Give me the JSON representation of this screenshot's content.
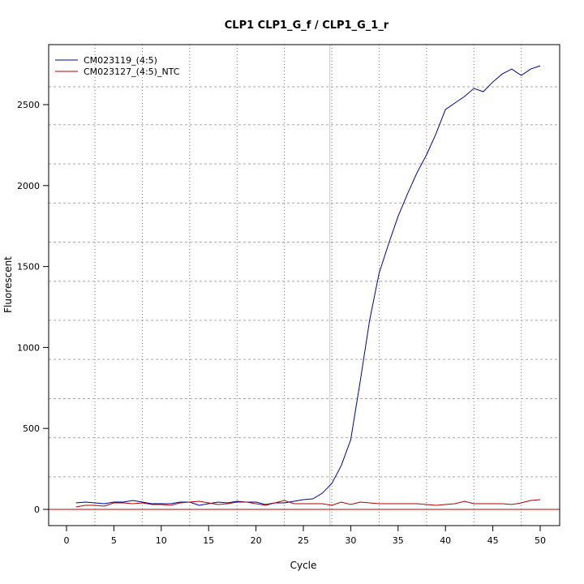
{
  "chart_data": {
    "type": "line",
    "title": "CLP1  CLP1_G_f / CLP1_G_1_r",
    "xlabel": "Cycle",
    "ylabel": "Fluorescent",
    "xlim": [
      -2,
      52
    ],
    "ylim": [
      -100,
      2860
    ],
    "xticks": [
      0,
      5,
      10,
      15,
      20,
      25,
      30,
      35,
      40,
      45,
      50
    ],
    "yticks": [
      0,
      500,
      1000,
      1500,
      2000,
      2500
    ],
    "vgrid": [
      3,
      8,
      13,
      18,
      23,
      28,
      33,
      38,
      43,
      48
    ],
    "hgrid": [
      201,
      443,
      684,
      926,
      1168,
      1409,
      1651,
      1892,
      2134,
      2376,
      2610
    ],
    "threshold_cycle": 27.8,
    "baseline": 0,
    "legend_position": "top-left",
    "series": [
      {
        "name": "CM023119_(4:5)",
        "color": "#0000a0",
        "x": [
          1,
          2,
          3,
          4,
          5,
          6,
          7,
          8,
          9,
          10,
          11,
          12,
          13,
          14,
          15,
          16,
          17,
          18,
          19,
          20,
          21,
          22,
          23,
          24,
          25,
          26,
          27,
          28,
          29,
          30,
          31,
          32,
          33,
          34,
          35,
          36,
          37,
          38,
          39,
          40,
          41,
          42,
          43,
          44,
          45,
          46,
          47,
          48,
          49,
          50
        ],
        "values": [
          40,
          45,
          40,
          35,
          45,
          45,
          55,
          45,
          35,
          35,
          35,
          45,
          45,
          25,
          35,
          45,
          40,
          50,
          45,
          45,
          30,
          40,
          40,
          50,
          60,
          65,
          100,
          160,
          270,
          430,
          790,
          1170,
          1460,
          1640,
          1810,
          1950,
          2080,
          2190,
          2320,
          2470,
          2510,
          2550,
          2600,
          2580,
          2640,
          2690,
          2720,
          2680,
          2720,
          2740
        ]
      },
      {
        "name": "CM023127_(4:5)_NTC",
        "color": "#b00000",
        "x": [
          1,
          2,
          3,
          4,
          5,
          6,
          7,
          8,
          9,
          10,
          11,
          12,
          13,
          14,
          15,
          16,
          17,
          18,
          19,
          20,
          21,
          22,
          23,
          24,
          25,
          26,
          27,
          28,
          29,
          30,
          31,
          32,
          33,
          34,
          35,
          36,
          37,
          38,
          39,
          40,
          41,
          42,
          43,
          44,
          45,
          46,
          47,
          48,
          49,
          50
        ],
        "values": [
          15,
          25,
          25,
          20,
          40,
          40,
          35,
          40,
          30,
          30,
          25,
          40,
          45,
          50,
          40,
          30,
          35,
          45,
          45,
          35,
          25,
          40,
          55,
          35,
          35,
          35,
          35,
          25,
          45,
          30,
          45,
          40,
          35,
          35,
          35,
          35,
          35,
          30,
          25,
          30,
          35,
          50,
          35,
          35,
          35,
          35,
          30,
          40,
          55,
          60
        ]
      }
    ]
  }
}
